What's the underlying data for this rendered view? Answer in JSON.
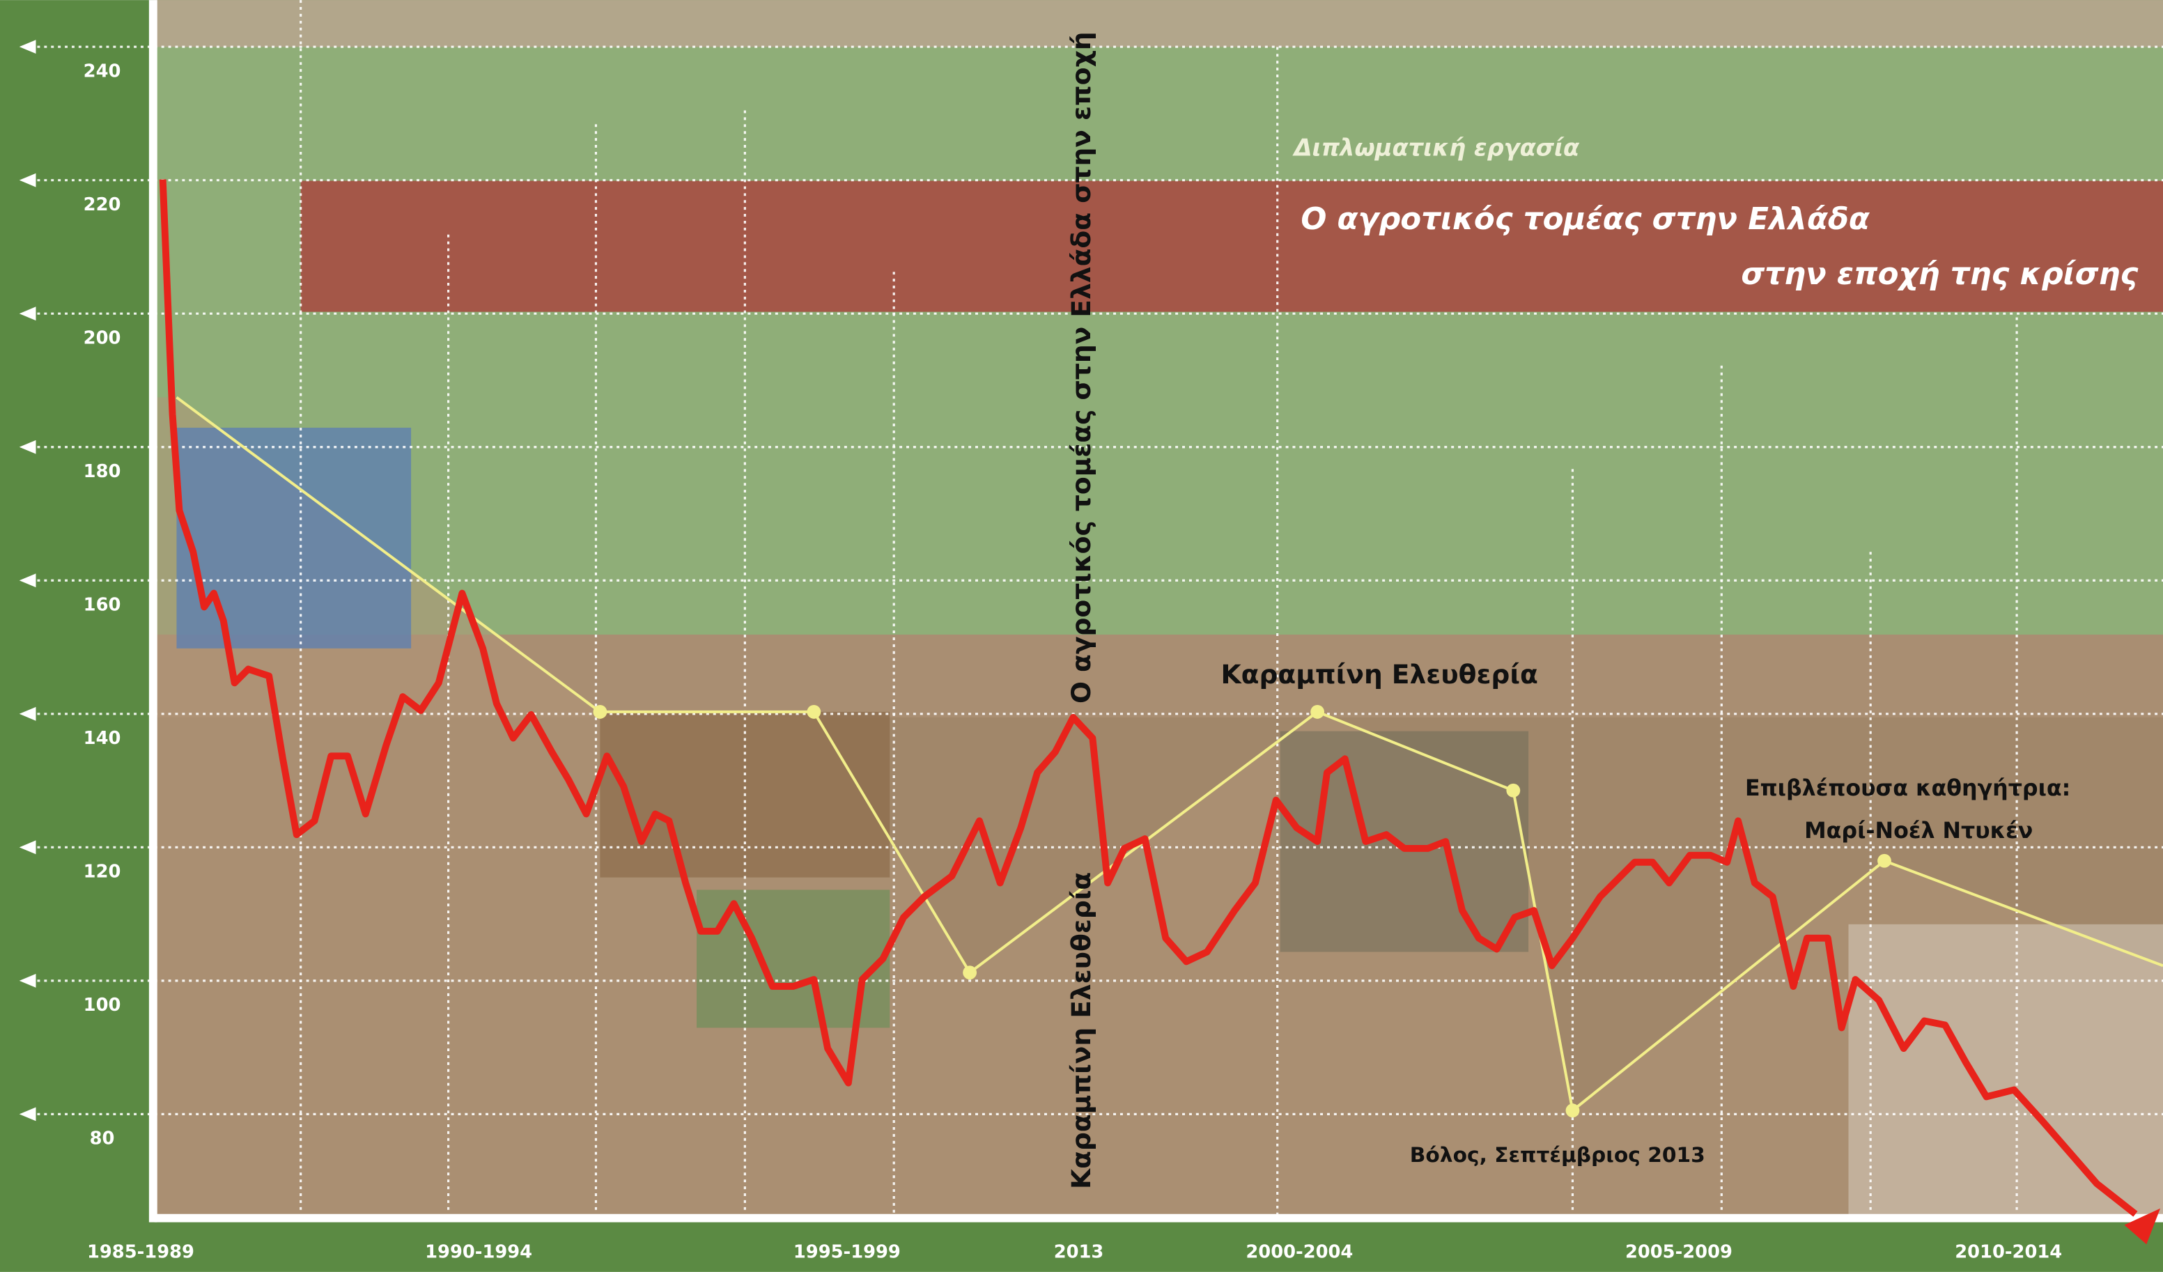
{
  "chart_data": {
    "type": "line",
    "ylim": [
      64,
      247
    ],
    "yticks": [
      80,
      100,
      120,
      140,
      160,
      180,
      200,
      220,
      240
    ],
    "categories": [
      "1985-1989",
      "1990-1994",
      "1995-1999",
      "2013",
      "2000-2004",
      "2005-2009",
      "2010-2014"
    ]
  },
  "texts": {
    "kicker": "Διπλωματική εργασία",
    "title_line1": "Ο αγροτικός τομέας στην Ελλάδα",
    "title_line2": "στην εποχή της κρίσης",
    "vertical_title": "Ο αγροτικός τομέας στην Ελλάδα στην εποχή",
    "vertical_author": "Καραμπίνη Ελευθερία",
    "author": "Καραμπίνη Ελευθερία",
    "supervisor_label": "Επιβλέπουσα καθηγήτρια:",
    "supervisor": "Μαρί-Νοέλ Ντυκέν",
    "place_date": "Βόλος, Σεπτέμβριος 2013"
  }
}
